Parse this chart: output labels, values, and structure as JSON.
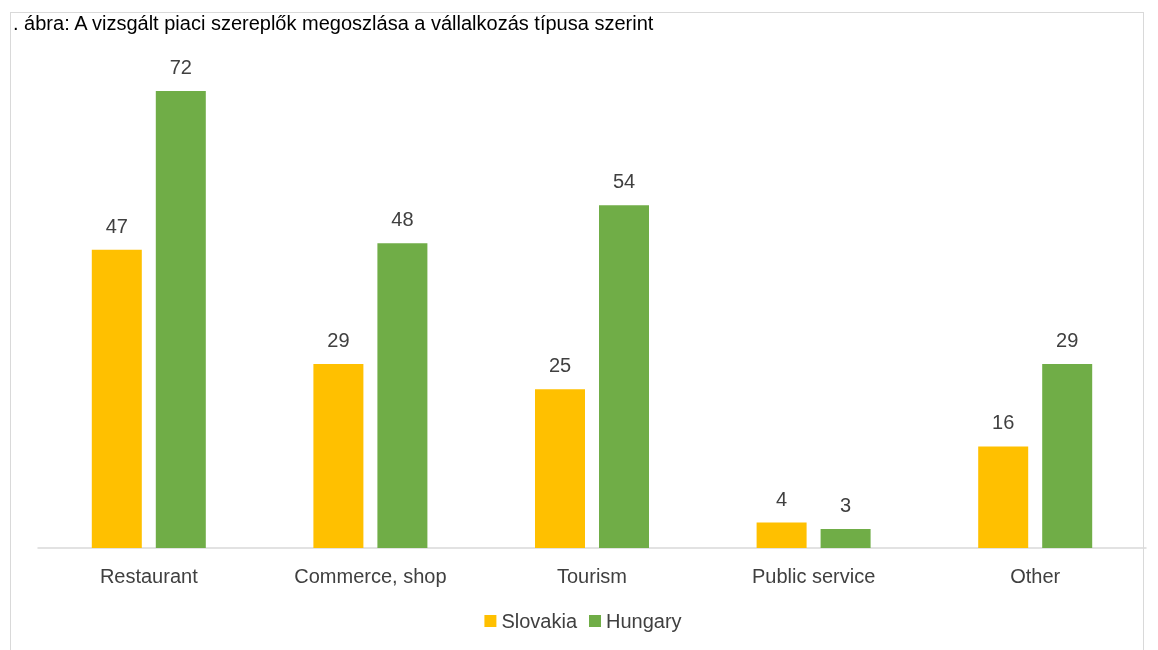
{
  "chart_data": {
    "type": "bar",
    "title": ". ábra: A vizsgált piaci szereplők megoszlása a vállalkozás típusa szerint",
    "categories": [
      "Restaurant",
      "Commerce, shop",
      "Tourism",
      "Public service",
      "Other"
    ],
    "series": [
      {
        "name": "Slovakia",
        "color": "#ffc000",
        "values": [
          47,
          29,
          25,
          4,
          16
        ]
      },
      {
        "name": "Hungary",
        "color": "#70ad47",
        "values": [
          72,
          48,
          54,
          3,
          29
        ]
      }
    ],
    "data_labels": true,
    "legend": "bottom",
    "grid": false
  }
}
